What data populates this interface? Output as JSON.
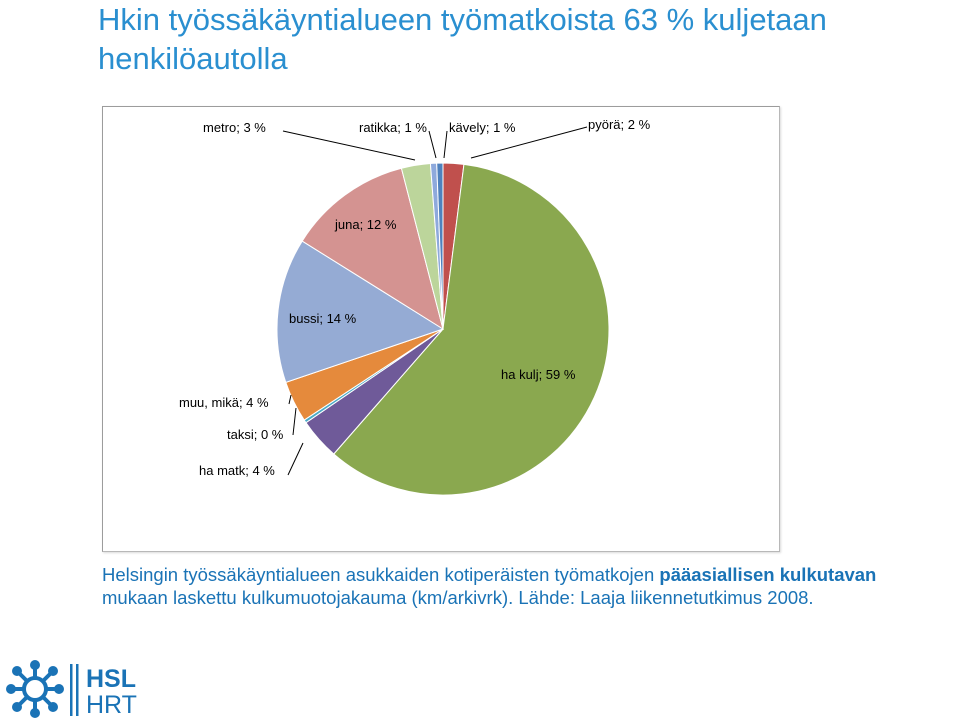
{
  "title": "Hkin työssäkäyntialueen työmatkoista 63 % kuljetaan henkilöautolla",
  "caption": {
    "part1": "Helsingin työssäkäyntialueen asukkaiden kotiperäisten työmatkojen ",
    "bold1": "pääasiallisen kulkutavan",
    "part2": " mukaan laskettu kulkumuotojakauma (km/arkivrk). Lähde: Laaja liikennetutkimus 2008."
  },
  "logo": {
    "line1": "HSL",
    "line2": "HRT"
  },
  "colors": {
    "accent": "#2a8fd0",
    "caption": "#1a73b6"
  },
  "chart_data": {
    "type": "pie",
    "slices": [
      {
        "label": "pyörä; 2 %",
        "value": 2,
        "color": "#c0504d"
      },
      {
        "label": "ha kulj; 59 %",
        "value": 59,
        "color": "#8aa84f"
      },
      {
        "label": "ha matk; 4 %",
        "value": 4,
        "color": "#6f5a99"
      },
      {
        "label": "taksi; 0 %",
        "value": 0.3,
        "color": "#4aaac5"
      },
      {
        "label": "muu, mikä; 4 %",
        "value": 4,
        "color": "#e58a3c"
      },
      {
        "label": "bussi; 14 %",
        "value": 14,
        "color": "#95abd4"
      },
      {
        "label": "juna; 12 %",
        "value": 12,
        "color": "#d49391"
      },
      {
        "label": "metro; 3 %",
        "value": 2.8,
        "color": "#bcd59b"
      },
      {
        "label": "ratikka; 1 %",
        "value": 0.6,
        "color": "#8ea9dc"
      },
      {
        "label": "kävely; 1 %",
        "value": 0.6,
        "color": "#4f81bd"
      }
    ]
  }
}
